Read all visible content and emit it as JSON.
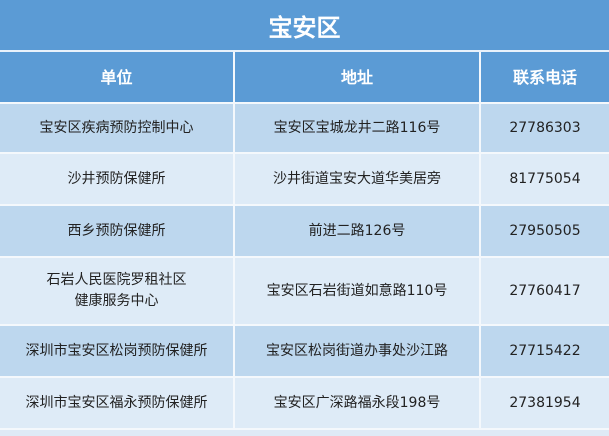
{
  "title": "宝安区",
  "headers": [
    "单位",
    "地址",
    "联系电话"
  ],
  "rows": [
    {
      "unit": "宝安区疾病预防控制中心",
      "address": "宝安区宝城龙井二路116号",
      "phone": "27786303"
    },
    {
      "unit": "沙井预防保健所",
      "address": "沙井街道宝安大道华美居旁",
      "phone": "81775054"
    },
    {
      "unit": "西乡预防保健所",
      "address": "前进二路126号",
      "phone": "27950505"
    },
    {
      "unit": "石岩人民医院罗租社区\n健康服务中心",
      "address": "宝安区石岩街道如意路110号",
      "phone": "27760417"
    },
    {
      "unit": "深圳市宝安区松岗预防保健所",
      "address": "宝安区松岗街道办事处沙江路",
      "phone": "27715422"
    },
    {
      "unit": "深圳市宝安区福永预防保健所",
      "address": "宝安区广深路福永段198号",
      "phone": "27381954"
    }
  ],
  "colors": {
    "header": "#5b9bd5",
    "row_dark": "#bdd7ee",
    "row_light": "#deebf7"
  }
}
